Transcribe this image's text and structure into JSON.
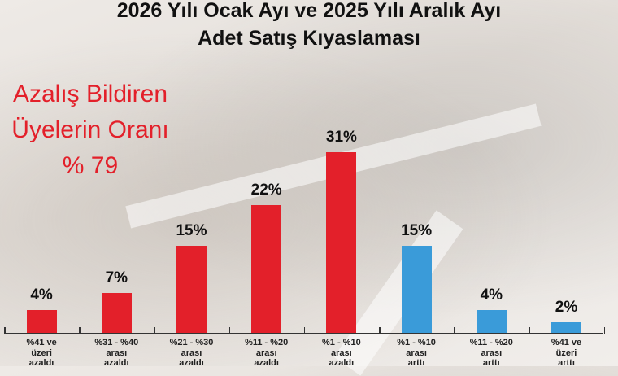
{
  "title": {
    "line1": "2026 Yılı Ocak Ayı ve 2025 Yılı Aralık Ayı",
    "line2": "Adet Satış Kıyaslaması"
  },
  "callout": {
    "line1": "Azalış Bildiren",
    "line2": "Üyelerin Oranı",
    "line3": "% 79"
  },
  "colors": {
    "decrease": "#E3202A",
    "increase": "#3A9BD9",
    "callout": "#E3202A"
  },
  "chart_data": {
    "type": "bar",
    "title": "2026 Yılı Ocak Ayı ve 2025 Yılı Aralık Ayı Adet Satış Kıyaslaması",
    "categories": [
      "%41 ve üzeri azaldı",
      "%31 - %40 arası azaldı",
      "%21 - %30 arası azaldı",
      "%11 - %20 arası azaldı",
      "%1 - %10 arası azaldı",
      "%1 - %10 arası arttı",
      "%11 - %20 arası arttı",
      "%41 ve üzeri arttı"
    ],
    "values": [
      4,
      7,
      15,
      22,
      31,
      15,
      4,
      2
    ],
    "labels": [
      "4%",
      "7%",
      "15%",
      "22%",
      "31%",
      "15%",
      "4%",
      "2%"
    ],
    "series_colors": [
      "#E3202A",
      "#E3202A",
      "#E3202A",
      "#E3202A",
      "#E3202A",
      "#3A9BD9",
      "#3A9BD9",
      "#3A9BD9"
    ],
    "category_lines": [
      [
        "%41 ve",
        "üzeri",
        "azaldı"
      ],
      [
        "%31 - %40",
        "arası",
        "azaldı"
      ],
      [
        "%21 - %30",
        "arası",
        "azaldı"
      ],
      [
        "%11 - %20",
        "arası",
        "azaldı"
      ],
      [
        "%1 - %10",
        "arası",
        "azaldı"
      ],
      [
        "%1 - %10",
        "arası",
        "arttı"
      ],
      [
        "%11 - %20",
        "arası",
        "arttı"
      ],
      [
        "%41 ve",
        "üzeri",
        "arttı"
      ]
    ],
    "annotation": "Azalış Bildiren Üyelerin Oranı % 79",
    "xlabel": "",
    "ylabel": "",
    "ylim": [
      0,
      31
    ],
    "grid": false,
    "legend": "none"
  }
}
